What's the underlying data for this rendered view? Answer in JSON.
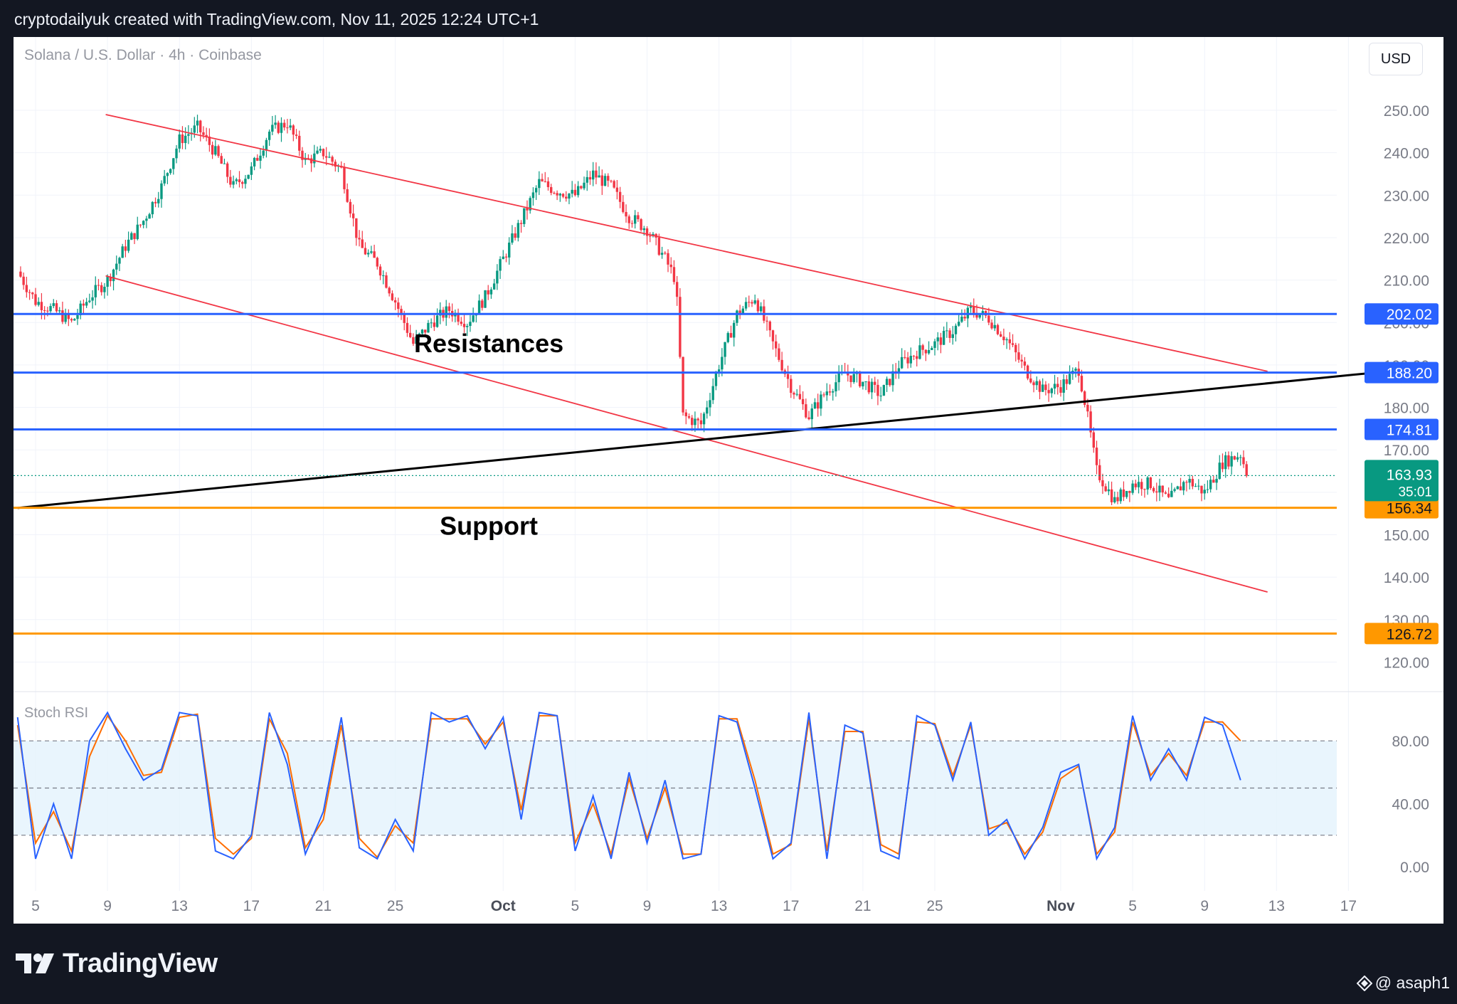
{
  "header": {
    "caption": "cryptodailyuk created with TradingView.com, Nov 11, 2025 12:24 UTC+1"
  },
  "symbol_label": "Solana / U.S. Dollar · 4h · Coinbase",
  "currency_button": "USD",
  "stoch_label": "Stoch RSI",
  "footer": {
    "logo_text": "TradingView",
    "user": "@ asaph1"
  },
  "colors": {
    "up": "#089981",
    "down": "#f23645",
    "resistance": "#2962ff",
    "support": "#ff9800",
    "channel": "#f23645",
    "trendline": "#000000",
    "stoch_k": "#2962ff",
    "stoch_d": "#ff6d00",
    "stoch_band": "#e3f2fd"
  },
  "chart_data": {
    "type": "candlestick",
    "title": "Solana / U.S. Dollar · 4h · Coinbase",
    "ylim": [
      115,
      258
    ],
    "y_ticks": [
      "250.00",
      "240.00",
      "230.00",
      "220.00",
      "210.00",
      "200.00",
      "190.00",
      "180.00",
      "170.00",
      "150.00",
      "140.00",
      "130.00",
      "120.00"
    ],
    "x_ticks": [
      "5",
      "9",
      "13",
      "17",
      "21",
      "25",
      "Oct",
      "5",
      "9",
      "13",
      "17",
      "21",
      "25",
      "Nov",
      "5",
      "9",
      "13",
      "17"
    ],
    "x_tick_days": [
      5,
      9,
      13,
      17,
      21,
      25,
      31,
      35,
      39,
      43,
      47,
      51,
      55,
      62,
      66,
      70,
      74,
      78
    ],
    "price_path": [
      [
        4,
        212
      ],
      [
        5,
        205
      ],
      [
        6,
        203
      ],
      [
        7,
        200
      ],
      [
        8,
        206
      ],
      [
        9,
        210
      ],
      [
        10,
        218
      ],
      [
        11,
        224
      ],
      [
        12,
        232
      ],
      [
        13,
        243
      ],
      [
        14,
        246
      ],
      [
        15,
        240
      ],
      [
        16,
        232
      ],
      [
        17,
        236
      ],
      [
        18,
        245
      ],
      [
        19,
        247
      ],
      [
        20,
        238
      ],
      [
        21,
        240
      ],
      [
        22,
        236
      ],
      [
        23,
        218
      ],
      [
        24,
        214
      ],
      [
        25,
        205
      ],
      [
        26,
        195
      ],
      [
        27,
        200
      ],
      [
        28,
        203
      ],
      [
        29,
        200
      ],
      [
        30,
        206
      ],
      [
        31,
        215
      ],
      [
        32,
        224
      ],
      [
        33,
        233
      ],
      [
        34,
        231
      ],
      [
        35,
        230
      ],
      [
        36,
        235
      ],
      [
        37,
        232
      ],
      [
        38,
        225
      ],
      [
        39,
        222
      ],
      [
        40,
        215
      ],
      [
        40.6,
        210
      ],
      [
        41,
        178
      ],
      [
        42,
        176
      ],
      [
        43,
        190
      ],
      [
        44,
        202
      ],
      [
        45,
        206
      ],
      [
        46,
        195
      ],
      [
        47,
        185
      ],
      [
        48,
        178
      ],
      [
        49,
        184
      ],
      [
        50,
        188
      ],
      [
        51,
        186
      ],
      [
        52,
        183
      ],
      [
        53,
        190
      ],
      [
        54,
        193
      ],
      [
        55,
        195
      ],
      [
        56,
        198
      ],
      [
        57,
        203
      ],
      [
        58,
        201
      ],
      [
        59,
        196
      ],
      [
        60,
        189
      ],
      [
        61,
        184
      ],
      [
        62,
        185
      ],
      [
        63,
        189
      ],
      [
        63.4,
        180
      ],
      [
        64,
        165
      ],
      [
        65,
        158
      ],
      [
        66,
        162
      ],
      [
        67,
        162
      ],
      [
        68,
        158
      ],
      [
        69,
        163
      ],
      [
        70,
        160
      ],
      [
        71,
        167
      ],
      [
        72,
        169
      ],
      [
        72.4,
        163.93
      ]
    ],
    "last_price": "163.93",
    "countdown": "35:01",
    "horizontal_levels": [
      {
        "price": 202.02,
        "label": "202.02",
        "kind": "resistance"
      },
      {
        "price": 188.2,
        "label": "188.20",
        "kind": "resistance"
      },
      {
        "price": 174.81,
        "label": "174.81",
        "kind": "resistance"
      },
      {
        "price": 156.34,
        "label": "156.34",
        "kind": "support"
      },
      {
        "price": 126.72,
        "label": "126.72",
        "kind": "support"
      }
    ],
    "channel_upper": [
      [
        8.9,
        249
      ],
      [
        73.5,
        188.5
      ]
    ],
    "channel_lower": [
      [
        8.9,
        211
      ],
      [
        73.5,
        136.5
      ]
    ],
    "trendline": [
      [
        4,
        156.3
      ],
      [
        79,
        188
      ]
    ],
    "annotations": [
      {
        "text": "Resistances",
        "day": 30.2,
        "price": 193
      },
      {
        "text": "Support",
        "day": 30.2,
        "price": 150
      }
    ],
    "stoch_rsi": {
      "y_ticks": [
        "80.00",
        "40.00",
        "0.00"
      ],
      "band": [
        20,
        80
      ],
      "mid": 50,
      "k": [
        [
          4,
          95
        ],
        [
          5,
          5
        ],
        [
          6,
          40
        ],
        [
          7,
          5
        ],
        [
          8,
          80
        ],
        [
          9,
          98
        ],
        [
          10,
          75
        ],
        [
          11,
          55
        ],
        [
          12,
          62
        ],
        [
          13,
          98
        ],
        [
          14,
          96
        ],
        [
          15,
          10
        ],
        [
          16,
          5
        ],
        [
          17,
          20
        ],
        [
          18,
          98
        ],
        [
          19,
          65
        ],
        [
          20,
          8
        ],
        [
          21,
          35
        ],
        [
          22,
          95
        ],
        [
          23,
          12
        ],
        [
          24,
          5
        ],
        [
          25,
          30
        ],
        [
          26,
          10
        ],
        [
          27,
          98
        ],
        [
          28,
          92
        ],
        [
          29,
          96
        ],
        [
          30,
          75
        ],
        [
          31,
          95
        ],
        [
          32,
          30
        ],
        [
          33,
          98
        ],
        [
          34,
          96
        ],
        [
          35,
          10
        ],
        [
          36,
          45
        ],
        [
          37,
          5
        ],
        [
          38,
          60
        ],
        [
          39,
          15
        ],
        [
          40,
          55
        ],
        [
          41,
          5
        ],
        [
          42,
          8
        ],
        [
          43,
          96
        ],
        [
          44,
          92
        ],
        [
          45,
          50
        ],
        [
          46,
          5
        ],
        [
          47,
          15
        ],
        [
          48,
          98
        ],
        [
          49,
          5
        ],
        [
          50,
          90
        ],
        [
          51,
          85
        ],
        [
          52,
          10
        ],
        [
          53,
          5
        ],
        [
          54,
          96
        ],
        [
          55,
          90
        ],
        [
          56,
          55
        ],
        [
          57,
          92
        ],
        [
          58,
          20
        ],
        [
          59,
          30
        ],
        [
          60,
          5
        ],
        [
          61,
          25
        ],
        [
          62,
          60
        ],
        [
          63,
          65
        ],
        [
          64,
          5
        ],
        [
          65,
          25
        ],
        [
          66,
          96
        ],
        [
          67,
          55
        ],
        [
          68,
          75
        ],
        [
          69,
          55
        ],
        [
          70,
          95
        ],
        [
          71,
          90
        ],
        [
          72,
          55
        ]
      ],
      "d": [
        [
          4,
          90
        ],
        [
          5,
          15
        ],
        [
          6,
          35
        ],
        [
          7,
          10
        ],
        [
          8,
          70
        ],
        [
          9,
          96
        ],
        [
          10,
          80
        ],
        [
          11,
          58
        ],
        [
          12,
          60
        ],
        [
          13,
          95
        ],
        [
          14,
          97
        ],
        [
          15,
          18
        ],
        [
          16,
          8
        ],
        [
          17,
          18
        ],
        [
          18,
          94
        ],
        [
          19,
          72
        ],
        [
          20,
          12
        ],
        [
          21,
          30
        ],
        [
          22,
          90
        ],
        [
          23,
          18
        ],
        [
          24,
          6
        ],
        [
          25,
          26
        ],
        [
          26,
          15
        ],
        [
          27,
          94
        ],
        [
          28,
          94
        ],
        [
          29,
          94
        ],
        [
          30,
          78
        ],
        [
          31,
          92
        ],
        [
          32,
          36
        ],
        [
          33,
          96
        ],
        [
          34,
          96
        ],
        [
          35,
          15
        ],
        [
          36,
          40
        ],
        [
          37,
          8
        ],
        [
          38,
          56
        ],
        [
          39,
          18
        ],
        [
          40,
          50
        ],
        [
          41,
          8
        ],
        [
          42,
          8
        ],
        [
          43,
          94
        ],
        [
          44,
          94
        ],
        [
          45,
          55
        ],
        [
          46,
          8
        ],
        [
          47,
          14
        ],
        [
          48,
          94
        ],
        [
          49,
          10
        ],
        [
          50,
          86
        ],
        [
          51,
          86
        ],
        [
          52,
          14
        ],
        [
          53,
          8
        ],
        [
          54,
          92
        ],
        [
          55,
          91
        ],
        [
          56,
          58
        ],
        [
          57,
          90
        ],
        [
          58,
          24
        ],
        [
          59,
          28
        ],
        [
          60,
          8
        ],
        [
          61,
          22
        ],
        [
          62,
          56
        ],
        [
          63,
          64
        ],
        [
          64,
          8
        ],
        [
          65,
          22
        ],
        [
          66,
          92
        ],
        [
          67,
          58
        ],
        [
          68,
          72
        ],
        [
          69,
          58
        ],
        [
          70,
          92
        ],
        [
          71,
          92
        ],
        [
          72,
          80
        ]
      ]
    }
  }
}
